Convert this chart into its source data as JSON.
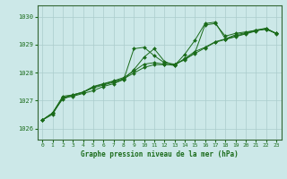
{
  "title": "Graphe pression niveau de la mer (hPa)",
  "bg_color": "#cce8e8",
  "grid_color": "#aacccc",
  "line_color": "#1a6b1a",
  "xlim": [
    -0.5,
    23.5
  ],
  "ylim": [
    1025.6,
    1030.4
  ],
  "yticks": [
    1026,
    1027,
    1028,
    1029,
    1030
  ],
  "xticks": [
    0,
    1,
    2,
    3,
    4,
    5,
    6,
    7,
    8,
    9,
    10,
    11,
    12,
    13,
    14,
    15,
    16,
    17,
    18,
    19,
    20,
    21,
    22,
    23
  ],
  "series": [
    [
      1026.3,
      1026.5,
      1027.1,
      1027.15,
      1027.25,
      1027.35,
      1027.5,
      1027.6,
      1027.75,
      1028.85,
      1028.9,
      1028.6,
      1028.35,
      1028.3,
      1028.45,
      1028.7,
      1029.7,
      1029.75,
      1029.3,
      1029.4,
      1029.45,
      1029.5,
      1029.55,
      1029.4
    ],
    [
      1026.3,
      1026.55,
      1027.15,
      1027.2,
      1027.3,
      1027.45,
      1027.55,
      1027.65,
      1027.75,
      1028.1,
      1028.55,
      1028.85,
      1028.4,
      1028.25,
      1028.65,
      1029.15,
      1029.75,
      1029.8,
      1029.2,
      1029.3,
      1029.4,
      1029.5,
      1029.55,
      1029.4
    ],
    [
      1026.3,
      1026.55,
      1027.1,
      1027.2,
      1027.3,
      1027.5,
      1027.6,
      1027.7,
      1027.82,
      1028.05,
      1028.3,
      1028.35,
      1028.3,
      1028.25,
      1028.5,
      1028.75,
      1028.9,
      1029.1,
      1029.2,
      1029.35,
      1029.42,
      1029.52,
      1029.58,
      1029.4
    ],
    [
      1026.3,
      1026.55,
      1027.05,
      1027.18,
      1027.28,
      1027.48,
      1027.58,
      1027.68,
      1027.78,
      1027.98,
      1028.18,
      1028.28,
      1028.28,
      1028.28,
      1028.48,
      1028.68,
      1028.88,
      1029.08,
      1029.18,
      1029.28,
      1029.38,
      1029.48,
      1029.58,
      1029.38
    ]
  ]
}
